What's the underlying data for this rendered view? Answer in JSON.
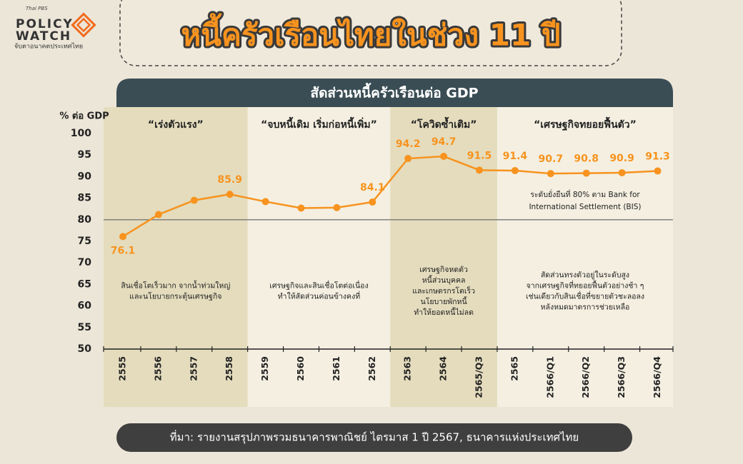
{
  "logo": {
    "brand": "Thai PBS",
    "line1": "POLICY",
    "line2": "WATCH",
    "tagline": "จับตาอนาคตประเทศไทย"
  },
  "chart_data": {
    "type": "line",
    "title": "หนี้ครัวเรือนไทยในช่วง 11 ปี",
    "subtitle": "สัดส่วนหนี้ครัวเรือนต่อ GDP",
    "y_axis_label": "% ต่อ GDP",
    "categories": [
      "2555",
      "2556",
      "2557",
      "2558",
      "2559",
      "2560",
      "2561",
      "2562",
      "2563",
      "2564",
      "2565/Q3",
      "2565",
      "2566/Q1",
      "2566/Q2",
      "2566/Q3",
      "2566/Q4"
    ],
    "values": [
      76.1,
      81.2,
      84.5,
      85.9,
      84.2,
      82.7,
      82.8,
      84.1,
      94.2,
      94.7,
      91.5,
      91.4,
      90.7,
      90.8,
      90.9,
      91.3
    ],
    "value_labels": [
      "76.1",
      null,
      null,
      "85.9",
      null,
      null,
      null,
      "84.1",
      "94.2",
      "94.7",
      "91.5",
      "91.4",
      "90.7",
      "90.8",
      "90.9",
      "91.3"
    ],
    "color": "#f7931e",
    "ylim": [
      50,
      100
    ],
    "yticks": [
      50,
      55,
      60,
      65,
      70,
      75,
      80,
      85,
      90,
      95,
      100
    ],
    "reference_line": {
      "value": 80,
      "color": "#777777",
      "label_lines": [
        "ระดับยั่งยืนที่ 80% ตาม Bank for",
        "International Settlement (BIS)"
      ]
    },
    "periods": [
      {
        "title": "“เร่งตัวแรง”",
        "from": "2555",
        "to": "2558",
        "shade": "#e4dcbd",
        "note_lines": [
          "สินเชื่อโตเร็วมาก จากน้ำท่วมใหญ่",
          "และนโยบายกระตุ้นเศรษฐกิจ"
        ]
      },
      {
        "title": "“จบหนี้เดิม เริ่มก่อหนี้เพิ่ม”",
        "from": "2559",
        "to": "2562",
        "shade": "#f4efe1",
        "note_lines": [
          "เศรษฐกิจและสินเชื่อโตต่อเนื่อง",
          "ทำให้สัดส่วนค่อนข้างคงที่"
        ]
      },
      {
        "title": "“โควิดซ้ำเติม”",
        "from": "2563",
        "to": "2565/Q3",
        "shade": "#e4dcbd",
        "note_lines": [
          "เศรษฐกิจหดตัว",
          "หนี้ส่วนบุคคล",
          "และเกษตรกรโตเร็ว",
          "นโยบายพักหนี้",
          "ทำให้ยอดหนี้ไม่ลด"
        ]
      },
      {
        "title": "“เศรษฐกิจทยอยฟื้นตัว”",
        "from": "2565",
        "to": "2566/Q4",
        "shade": "#f4efe1",
        "note_lines": [
          "สัดส่วนทรงตัวอยู่ในระดับสูง",
          "จากเศรษฐกิจที่ทยอยฟื้นตัวอย่างช้า ๆ",
          "เช่นเดียวกับสินเชื่อที่ขยายตัวชะลอลง",
          "หลังหมดมาตรการช่วยเหลือ"
        ]
      }
    ],
    "source": "ที่มา: รายงานสรุปภาพรวมธนาคารพาณิชย์ ไตรมาส 1 ปี 2567, ธนาคารแห่งประเทศไทย"
  }
}
